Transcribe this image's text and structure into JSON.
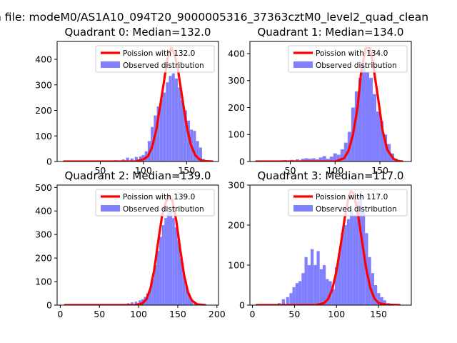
{
  "figure": {
    "suptitle": "n file: modeM0/AS1A10_094T20_9000005316_37363cztM0_level2_quad_clean"
  },
  "colors": {
    "model_line": "#ff0000",
    "hist_fill": "#8080ff",
    "axis": "#000000"
  },
  "chart_data": [
    {
      "type": "bar",
      "title": "Quadrant 0: Median=132.0",
      "xlim": [
        0,
        187
      ],
      "ylim": [
        0,
        470
      ],
      "xticks": [
        50,
        100,
        150
      ],
      "yticks": [
        0,
        100,
        200,
        300,
        400
      ],
      "xlabel": "",
      "ylabel": "",
      "legend": {
        "placement": "top-right",
        "entries": [
          "Poission with 132.0",
          "Observed distribution"
        ]
      },
      "series": [
        {
          "name": "Poission with 132.0",
          "kind": "line",
          "style": "line",
          "x": [
            8,
            90,
            100,
            105,
            110,
            115,
            120,
            125,
            128,
            132,
            136,
            140,
            145,
            150,
            155,
            160,
            165,
            170,
            180
          ],
          "y": [
            0,
            0,
            8,
            20,
            55,
            125,
            230,
            340,
            405,
            445,
            420,
            360,
            250,
            140,
            65,
            25,
            8,
            2,
            0
          ]
        },
        {
          "name": "Observed distribution",
          "kind": "histogram",
          "bin_width": 3.4,
          "x": [
            66,
            75,
            80,
            85,
            90,
            95,
            98,
            101.5,
            105,
            108.5,
            112,
            115.5,
            119,
            122.5,
            126,
            129.5,
            133,
            136.5,
            140,
            143.5,
            147,
            150.5,
            154,
            157.5,
            161,
            164.5,
            168,
            171.5
          ],
          "y": [
            5,
            8,
            15,
            12,
            18,
            20,
            25,
            40,
            80,
            135,
            180,
            215,
            245,
            270,
            310,
            335,
            345,
            325,
            290,
            240,
            200,
            160,
            125,
            120,
            80,
            55,
            10,
            5
          ]
        }
      ]
    },
    {
      "type": "bar",
      "title": "Quadrant 1: Median=134.0",
      "xlim": [
        5,
        185
      ],
      "ylim": [
        0,
        445
      ],
      "xticks": [
        50,
        100,
        150
      ],
      "yticks": [
        0,
        100,
        200,
        300,
        400
      ],
      "xlabel": "",
      "ylabel": "",
      "legend": {
        "placement": "top-right",
        "entries": [
          "Poission with 134.0",
          "Observed distribution"
        ]
      },
      "series": [
        {
          "name": "Poission with 134.0",
          "kind": "line",
          "style": "line",
          "x": [
            12,
            100,
            110,
            115,
            120,
            125,
            129,
            134,
            139,
            143,
            148,
            153,
            158,
            165,
            170,
            175
          ],
          "y": [
            0,
            0,
            12,
            40,
            100,
            200,
            330,
            420,
            420,
            345,
            235,
            115,
            45,
            10,
            2,
            0
          ]
        },
        {
          "name": "Observed distribution",
          "kind": "histogram",
          "bin_width": 4,
          "x": [
            38,
            42,
            46,
            50,
            56,
            62,
            66,
            70,
            74,
            78,
            82,
            86,
            90,
            94,
            98,
            102,
            106,
            110,
            114,
            118,
            122,
            126,
            130,
            134,
            138,
            142,
            146,
            150,
            154,
            158,
            162,
            166
          ],
          "y": [
            3,
            5,
            4,
            6,
            8,
            10,
            12,
            10,
            12,
            8,
            15,
            20,
            10,
            18,
            30,
            25,
            45,
            70,
            110,
            200,
            260,
            310,
            360,
            330,
            310,
            250,
            185,
            150,
            100,
            65,
            30,
            10
          ]
        }
      ]
    },
    {
      "type": "bar",
      "title": "Quadrant 2: Median=139.0",
      "xlim": [
        -4,
        202
      ],
      "ylim": [
        0,
        510
      ],
      "xticks": [
        0,
        50,
        100,
        150,
        200
      ],
      "yticks": [
        0,
        100,
        200,
        300,
        400,
        500
      ],
      "xlabel": "",
      "ylabel": "",
      "legend": {
        "placement": "top-right",
        "entries": [
          "Poission with 139.0",
          "Observed distribution"
        ]
      },
      "series": [
        {
          "name": "Poission with 139.0",
          "kind": "line",
          "style": "line",
          "x": [
            6,
            95,
            105,
            110,
            115,
            120,
            125,
            130,
            135,
            139,
            143,
            148,
            153,
            158,
            163,
            168,
            175,
            185
          ],
          "y": [
            0,
            0,
            8,
            25,
            70,
            150,
            270,
            380,
            440,
            460,
            445,
            360,
            240,
            130,
            55,
            20,
            3,
            0
          ]
        },
        {
          "name": "Observed distribution",
          "kind": "histogram",
          "bin_width": 3.3,
          "x": [
            80,
            85,
            90,
            95,
            100,
            103.3,
            106.6,
            109.9,
            113.2,
            116.5,
            119.8,
            123.1,
            126.4,
            129.7,
            133,
            136.3,
            139.6,
            142.9,
            146.2,
            149.5,
            152.8,
            156.1,
            159.4,
            162.7,
            166,
            170
          ],
          "y": [
            5,
            8,
            12,
            15,
            20,
            25,
            35,
            50,
            70,
            110,
            170,
            230,
            290,
            340,
            370,
            395,
            400,
            370,
            330,
            275,
            200,
            130,
            85,
            50,
            20,
            8
          ]
        }
      ]
    },
    {
      "type": "bar",
      "title": "Quadrant 3: Median=117.0",
      "xlim": [
        -3,
        189
      ],
      "ylim": [
        0,
        300
      ],
      "xticks": [
        0,
        50,
        100,
        150
      ],
      "yticks": [
        0,
        100,
        200,
        300
      ],
      "xlabel": "",
      "ylabel": "",
      "legend": {
        "placement": "top-right",
        "entries": [
          "Poission with 117.0",
          "Observed distribution"
        ]
      },
      "series": [
        {
          "name": "Poission with 117.0",
          "kind": "line",
          "style": "line",
          "x": [
            5,
            75,
            85,
            90,
            95,
            100,
            105,
            110,
            114,
            117,
            120,
            125,
            130,
            135,
            140,
            145,
            150,
            160,
            175
          ],
          "y": [
            0,
            0,
            5,
            15,
            40,
            85,
            150,
            220,
            265,
            285,
            280,
            235,
            165,
            95,
            45,
            17,
            5,
            1,
            0
          ]
        },
        {
          "name": "Observed distribution",
          "kind": "histogram",
          "bin_width": 3.6,
          "x": [
            30,
            35,
            40,
            44,
            47.6,
            51.2,
            54.8,
            58.4,
            62,
            65.6,
            69.2,
            72.8,
            76.4,
            80,
            83.6,
            87.2,
            90.8,
            94.4,
            98,
            101.6,
            105.2,
            108.8,
            112.4,
            116,
            119.6,
            123.2,
            126.8,
            130.4,
            134,
            137.6,
            141.2,
            144.8,
            148.4,
            152,
            155.6,
            160
          ],
          "y": [
            5,
            15,
            20,
            30,
            45,
            55,
            60,
            80,
            120,
            100,
            140,
            100,
            135,
            90,
            100,
            65,
            60,
            40,
            95,
            130,
            180,
            200,
            215,
            240,
            225,
            260,
            285,
            240,
            180,
            120,
            80,
            50,
            30,
            20,
            12,
            5
          ]
        }
      ]
    }
  ]
}
